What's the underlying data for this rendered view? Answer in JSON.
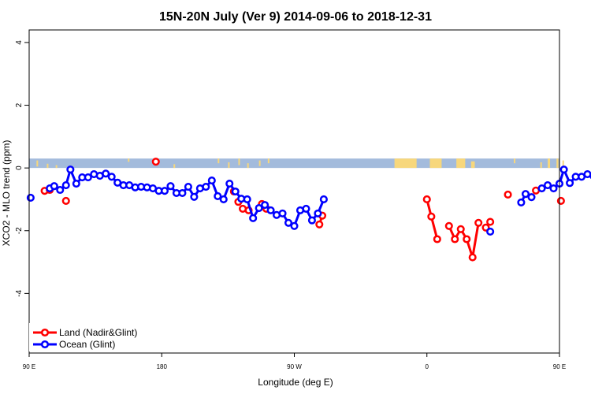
{
  "chart_data": {
    "type": "line",
    "title": "15N-20N July (Ver 9)   2014-09-06 to 2018-12-31",
    "xlabel": "Longitude (deg E)",
    "ylabel": "XCO2 - MLO trend (ppm)",
    "xlim": [
      90,
      450
    ],
    "ylim": [
      -5.9,
      4.4
    ],
    "x_ticks": [
      {
        "value": 90,
        "label": "90 E"
      },
      {
        "value": 180,
        "label": "180"
      },
      {
        "value": 270,
        "label": "90 W"
      },
      {
        "value": 360,
        "label": "0"
      },
      {
        "value": 450,
        "label": "90 E"
      },
      {
        "value": 540,
        "label": "180"
      }
    ],
    "y_ticks": [
      {
        "value": 4,
        "label": "4"
      },
      {
        "value": 2,
        "label": "2"
      },
      {
        "value": 0,
        "label": "0"
      },
      {
        "value": -2,
        "label": "-2"
      },
      {
        "value": -4,
        "label": "-4"
      }
    ],
    "map_strip": {
      "y_range": [
        0,
        0.3
      ],
      "ocean_color": "#a3bbdc",
      "land_color": "#f7d77c"
    },
    "legend": {
      "position": "bottom-left"
    },
    "series": [
      {
        "name": "Land (Nadir&Glint)",
        "color": "#ff0000",
        "segments": [
          [
            [
              100.5,
              -0.73
            ],
            [
              104,
              -0.7
            ]
          ],
          [
            [
              115,
              -1.05
            ]
          ],
          [
            [
              176,
              0.2
            ]
          ],
          [
            [
              229,
              -0.75
            ]
          ],
          [
            [
              232,
              -1.08
            ]
          ],
          [
            [
              235,
              -1.3
            ],
            [
              239,
              -1.35
            ]
          ],
          [
            [
              248,
              -1.15
            ],
            [
              251,
              -1.3
            ]
          ],
          [
            [
              287,
              -1.8
            ],
            [
              289,
              -1.52
            ]
          ],
          [
            [
              360,
              -1.0
            ],
            [
              363,
              -1.55
            ],
            [
              367,
              -2.27
            ]
          ],
          [
            [
              375,
              -1.85
            ],
            [
              379,
              -2.27
            ],
            [
              383,
              -1.95
            ],
            [
              387,
              -2.27
            ],
            [
              391,
              -2.85
            ],
            [
              395,
              -1.75
            ]
          ],
          [
            [
              400,
              -1.9
            ],
            [
              403,
              -1.72
            ]
          ],
          [
            [
              415,
              -0.85
            ]
          ],
          [
            [
              434,
              -0.72
            ]
          ],
          [
            [
              451,
              -1.05
            ]
          ]
        ]
      },
      {
        "name": "Ocean (Glint)",
        "color": "#0000ff",
        "segments": [
          [
            [
              91,
              -0.95
            ]
          ],
          [
            [
              104,
              -0.65
            ],
            [
              107,
              -0.58
            ],
            [
              111,
              -0.7
            ],
            [
              115,
              -0.55
            ],
            [
              118,
              -0.05
            ],
            [
              122,
              -0.5
            ],
            [
              126,
              -0.3
            ],
            [
              130,
              -0.3
            ],
            [
              134,
              -0.2
            ],
            [
              138,
              -0.25
            ],
            [
              142,
              -0.18
            ],
            [
              146,
              -0.28
            ],
            [
              150,
              -0.47
            ],
            [
              154,
              -0.55
            ],
            [
              158,
              -0.55
            ],
            [
              162,
              -0.62
            ],
            [
              166,
              -0.6
            ],
            [
              170,
              -0.62
            ],
            [
              174,
              -0.65
            ],
            [
              178,
              -0.73
            ],
            [
              182,
              -0.73
            ],
            [
              186,
              -0.58
            ],
            [
              190,
              -0.8
            ],
            [
              194,
              -0.8
            ],
            [
              198,
              -0.6
            ],
            [
              202,
              -0.92
            ],
            [
              206,
              -0.65
            ],
            [
              210,
              -0.6
            ],
            [
              214,
              -0.4
            ],
            [
              218,
              -0.9
            ],
            [
              222,
              -1.0
            ],
            [
              226,
              -0.5
            ],
            [
              230,
              -0.75
            ],
            [
              234,
              -0.98
            ],
            [
              238,
              -1.0
            ],
            [
              242,
              -1.6
            ],
            [
              246,
              -1.28
            ],
            [
              250,
              -1.18
            ],
            [
              254,
              -1.35
            ],
            [
              258,
              -1.5
            ],
            [
              262,
              -1.45
            ],
            [
              266,
              -1.75
            ],
            [
              270,
              -1.85
            ],
            [
              274,
              -1.35
            ],
            [
              278,
              -1.3
            ],
            [
              282,
              -1.67
            ],
            [
              286,
              -1.45
            ],
            [
              290,
              -1.0
            ]
          ],
          [
            [
              403,
              -2.03
            ]
          ],
          [
            [
              424,
              -1.1
            ],
            [
              427,
              -0.83
            ],
            [
              431,
              -0.93
            ]
          ],
          [
            [
              438,
              -0.65
            ],
            [
              442,
              -0.55
            ],
            [
              446,
              -0.65
            ],
            [
              450,
              -0.5
            ],
            [
              453,
              -0.05
            ],
            [
              457,
              -0.48
            ],
            [
              461,
              -0.28
            ],
            [
              465,
              -0.28
            ],
            [
              469,
              -0.2
            ],
            [
              473,
              -0.25
            ],
            [
              477,
              -0.2
            ],
            [
              481,
              -0.28
            ],
            [
              485,
              -0.45
            ],
            [
              489,
              -0.52
            ],
            [
              493,
              -0.5
            ]
          ]
        ]
      }
    ]
  }
}
